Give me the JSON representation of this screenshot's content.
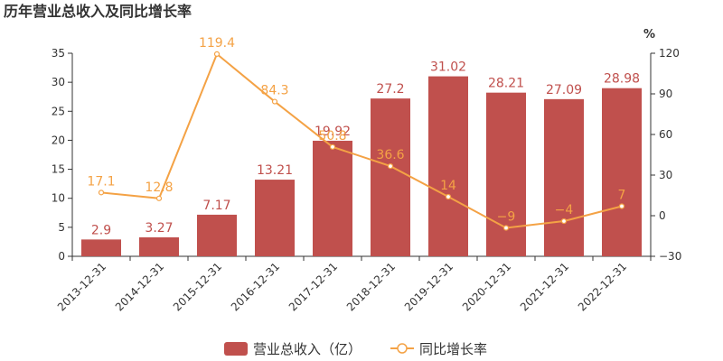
{
  "chart_data": {
    "type": "bar",
    "title": "历年营业总收入及同比增长率",
    "categories": [
      "2013-12-31",
      "2014-12-31",
      "2015-12-31",
      "2016-12-31",
      "2017-12-31",
      "2018-12-31",
      "2019-12-31",
      "2020-12-31",
      "2021-12-31",
      "2022-12-31"
    ],
    "series": [
      {
        "name": "营业总收入（亿）",
        "type": "bar",
        "axis": "left",
        "color": "#c0504d",
        "values": [
          2.9,
          3.27,
          7.17,
          13.21,
          19.92,
          27.2,
          31.02,
          28.21,
          27.09,
          28.98
        ],
        "labels": [
          "2.9",
          "3.27",
          "7.17",
          "13.21",
          "19.92",
          "27.2",
          "31.02",
          "28.21",
          "27.09",
          "28.98"
        ]
      },
      {
        "name": "同比增长率",
        "type": "line",
        "axis": "right",
        "color": "#f4a245",
        "values": [
          17.1,
          12.8,
          119.4,
          84.3,
          50.8,
          36.6,
          14,
          -9,
          -4,
          7
        ],
        "labels": [
          "17.1",
          "12.8",
          "119.4",
          "84.3",
          "50.8",
          "36.6",
          "14",
          "−9",
          "−4",
          "7"
        ]
      }
    ],
    "y_left": {
      "min": 0,
      "max": 35,
      "ticks": [
        0,
        5,
        10,
        15,
        20,
        25,
        30,
        35
      ]
    },
    "y_right": {
      "min": -30,
      "max": 120,
      "ticks": [
        -30,
        0,
        30,
        60,
        90,
        120
      ],
      "tick_labels": [
        "−30",
        "0",
        "30",
        "60",
        "90",
        "120"
      ],
      "unit": "%"
    },
    "grid": false,
    "legend_position": "bottom-center"
  }
}
